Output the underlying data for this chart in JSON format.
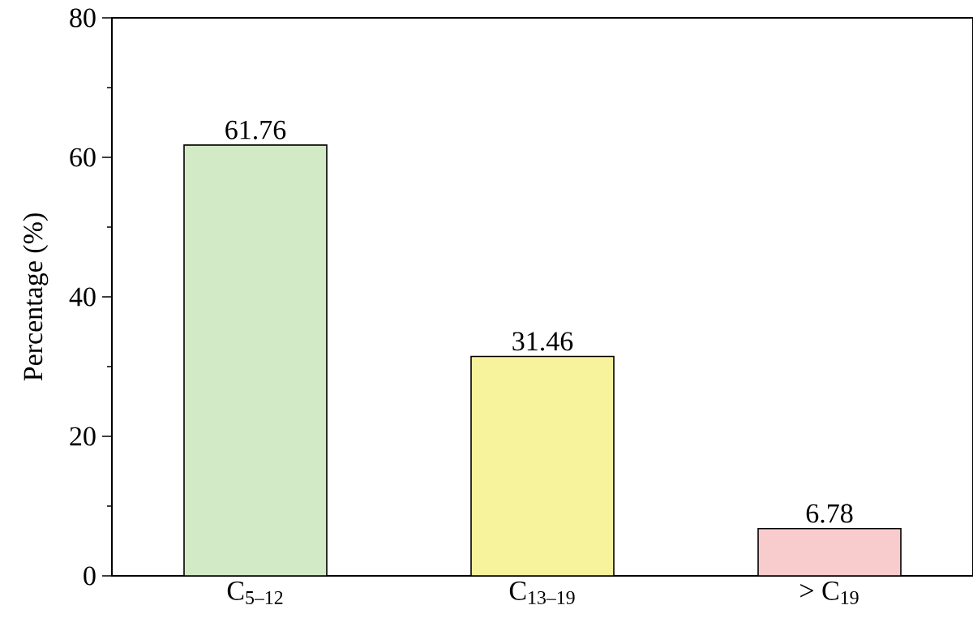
{
  "chart_data": {
    "type": "bar",
    "ylabel": "Percentage (%)",
    "categories": [
      "C$_{5–12}$",
      "C$_{13–19}$",
      "> C$_{19}$"
    ],
    "values": [
      61.76,
      31.46,
      6.78
    ],
    "colors": [
      "#d3eac6",
      "#f7f29c",
      "#f8cbcd"
    ],
    "ylim": [
      0,
      80
    ],
    "yticks": [
      0,
      20,
      40,
      60,
      80
    ],
    "data_labels": true
  }
}
